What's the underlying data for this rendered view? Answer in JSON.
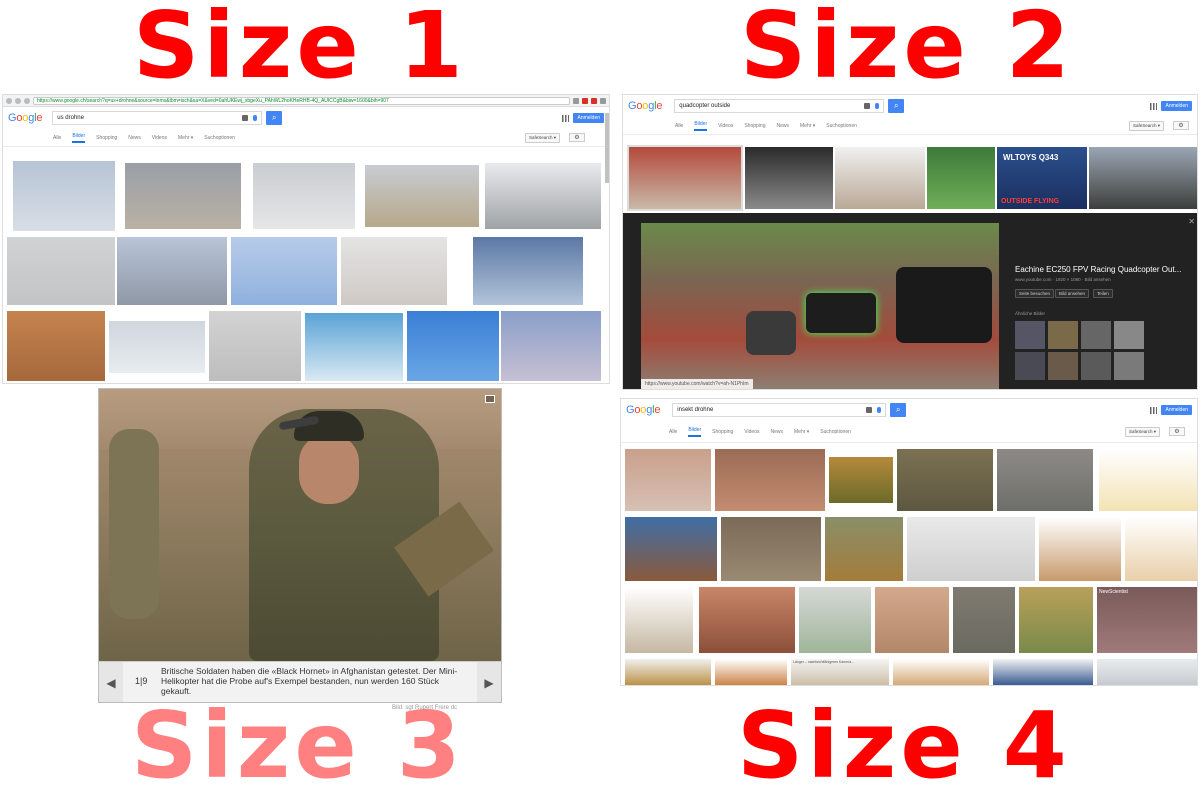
{
  "labels": {
    "size1": "Size 1",
    "size2": "Size 2",
    "size3": "Size 3",
    "size4": "Size 4"
  },
  "panel1": {
    "url": "https://www.google.ch/search?q=us+drohne&source=lnms&tbm=isch&sa=X&ved=0ahUKEwj_xbgeXu_PAhWL2hoKHeRHB-4Q_AUICCgB&biw=1600&bih=907",
    "query": "us drohne",
    "signin": "Anmelden",
    "tabs": [
      "Alle",
      "Bilder",
      "Shopping",
      "News",
      "Videos",
      "Mehr ▾",
      "Suchoptionen"
    ],
    "safesearch": "SafeSearch ▾"
  },
  "panel2": {
    "query": "quadcopter outside",
    "signin": "Anmelden",
    "tabs": [
      "Alle",
      "Bilder",
      "Videos",
      "Shopping",
      "News",
      "Mehr ▾",
      "Suchoptionen"
    ],
    "safesearch": "SafeSearch ▾",
    "thumb_text": [
      "WLTOYS Q343",
      "OUTSIDE FLYING"
    ],
    "detail_title": "Eachine EC250 FPV Racing Quadcopter Out...",
    "detail_meta": "www.youtube.com · 1920 × 1080 · Bild ansehen",
    "detail_buttons": [
      "Seite besuchen",
      "Bild ansehen",
      "Teilen"
    ],
    "related_label": "Ähnliche Bilder",
    "source_url": "https://www.youtube.com/watch?v=ah-N1PhIm"
  },
  "panel3": {
    "count": "1|9",
    "caption": "Britische Soldaten haben die «Black Hornet» in Afghanistan getestet. Der Mini-Helikopter hat die Probe auf's Exempel bestanden, nun werden 160 Stück gekauft.",
    "credit": "Bild: sgt Rupert Frere dc",
    "prev": "◀",
    "next": "▶"
  },
  "panel4": {
    "query": "insekt drohne",
    "signin": "Anmelden",
    "tabs": [
      "Alle",
      "Bilder",
      "Shopping",
      "Videos",
      "News",
      "Mehr ▾",
      "Suchoptionen"
    ],
    "safesearch": "SafeSearch ▾",
    "thumb_text": [
      "NewScientist",
      "Länger – nachtsichtfähigeres Kamera..."
    ]
  },
  "colors": {
    "label_red": "#ff0000",
    "label_pink": "#ff8080",
    "google_blue": "#4285f4"
  }
}
